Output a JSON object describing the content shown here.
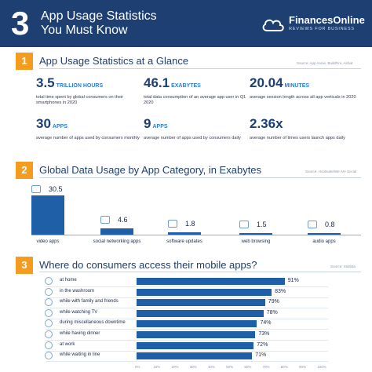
{
  "header": {
    "number": "3",
    "title_line1": "App Usage Statistics",
    "title_line2": "You Must Know",
    "logo_name": "FinancesOnline",
    "logo_tagline": "REVIEWS FOR BUSINESS"
  },
  "section1": {
    "number": "1",
    "title": "App Usage Statistics at a Glance",
    "source": "Source: App Annie, BuildFire, Airbat",
    "stats": [
      {
        "value": "3.5",
        "unit": "TRILLION HOURS",
        "desc": "total time spent by global consumers on their smartphones in 2020"
      },
      {
        "value": "46.1",
        "unit": "EXABYTES",
        "desc": "total data consumption of an average app user in Q1 2020"
      },
      {
        "value": "20.04",
        "unit": "MINUTES",
        "desc": "average session length across all app verticals in 2020"
      },
      {
        "value": "30",
        "unit": "APPS",
        "desc": "average number of apps used by consumers monthly"
      },
      {
        "value": "9",
        "unit": "APPS",
        "desc": "average number of apps used by consumers daily"
      },
      {
        "value": "2.36x",
        "unit": "",
        "desc": "average number of times users launch apps daily"
      }
    ]
  },
  "section2": {
    "number": "2",
    "title": "Global Data Usage by App Category, in Exabytes",
    "source": "Source: Hootsuite/We Are Social"
  },
  "section3": {
    "number": "3",
    "title": "Where do consumers access their mobile apps?",
    "source": "Source: Statista"
  },
  "chart_data": [
    {
      "type": "bar",
      "title": "Global Data Usage by App Category, in Exabytes",
      "categories": [
        "video apps",
        "social networking apps",
        "software updates",
        "web browsing",
        "audio apps"
      ],
      "values": [
        30.5,
        4.6,
        1.8,
        1.5,
        0.8
      ],
      "value_labels": [
        "30.5",
        "4.6",
        "1.8",
        "1.5",
        "0.8"
      ],
      "icons": [
        "video-icon",
        "social-icon",
        "update-icon",
        "browser-icon",
        "headphones-icon"
      ],
      "color": "#1f5fa8"
    },
    {
      "type": "bar",
      "orientation": "horizontal",
      "title": "Where do consumers access their mobile apps?",
      "categories": [
        "at home",
        "in the washroom",
        "while with family and friends",
        "while watching TV",
        "during miscellaneous downtime",
        "while having dinner",
        "at work",
        "while waiting in line"
      ],
      "values": [
        91,
        83,
        79,
        78,
        74,
        73,
        72,
        71
      ],
      "value_labels": [
        "91%",
        "83%",
        "79%",
        "78%",
        "74%",
        "73%",
        "72%",
        "71%"
      ],
      "xlim": [
        0,
        100
      ],
      "ticks": [
        "0%",
        "10%",
        "20%",
        "30%",
        "40%",
        "50%",
        "60%",
        "70%",
        "80%",
        "90%",
        "100%"
      ],
      "color": "#1f5fa8"
    }
  ]
}
